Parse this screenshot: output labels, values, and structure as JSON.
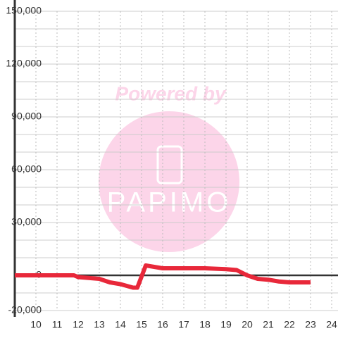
{
  "chart_data": {
    "type": "line",
    "watermark": {
      "text": "Powered by",
      "logo": "PAPIMO"
    },
    "x": [
      9,
      11.8,
      12,
      12.5,
      13,
      13.5,
      14,
      14.6,
      14.8,
      15.2,
      15.5,
      16,
      17,
      18,
      19,
      19.5,
      20,
      20.5,
      21,
      21.5,
      22,
      23
    ],
    "series": [
      {
        "color": "#e8283a",
        "values": [
          0,
          0,
          -1000,
          -1500,
          -2000,
          -4000,
          -5000,
          -7000,
          -7000,
          5600,
          5000,
          4000,
          4000,
          4000,
          3500,
          3000,
          0,
          -2000,
          -2500,
          -3500,
          -4000,
          -4000
        ]
      }
    ],
    "xlim": [
      9,
      24.3
    ],
    "xticks": [
      10,
      11,
      12,
      13,
      14,
      15,
      16,
      17,
      18,
      19,
      20,
      21,
      22,
      23,
      24
    ],
    "ylim": [
      -20000,
      150000
    ],
    "yticks": [
      {
        "value": -20000,
        "label": "-20,000"
      },
      0,
      {
        "value": 30000,
        "label": "30,000"
      },
      {
        "value": 60000,
        "label": "60,000"
      },
      {
        "value": 90000,
        "label": "90,000"
      },
      {
        "value": 120000,
        "label": "120,000"
      },
      {
        "value": 150000,
        "label": "150,000"
      }
    ],
    "minor_yticks": [
      -10000,
      10000,
      20000,
      40000,
      50000,
      70000,
      80000,
      100000,
      110000,
      130000,
      140000
    ],
    "grid": true
  }
}
